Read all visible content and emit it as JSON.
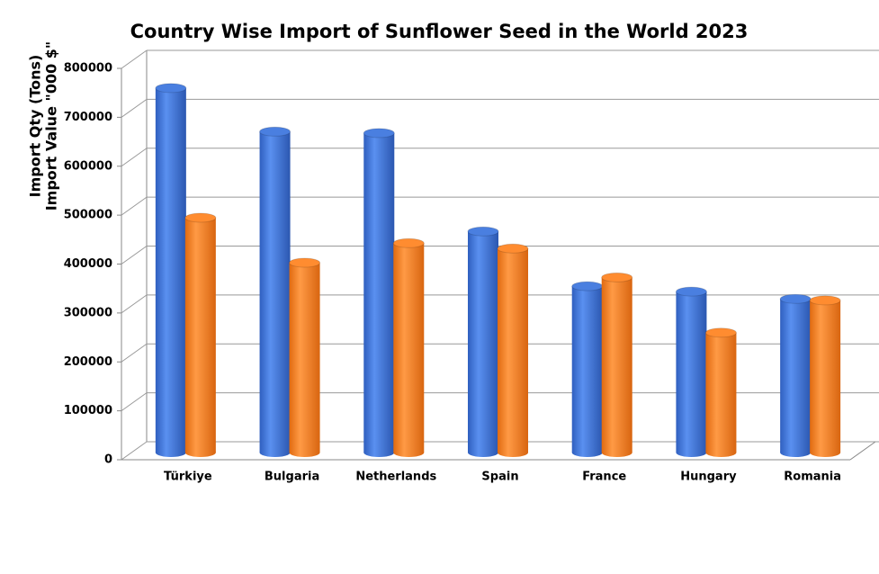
{
  "chart_data": {
    "type": "bar3d",
    "title": "Country Wise Import of Sunflower Seed in the World 2023",
    "y_label": [
      "Import Qty (Tons)",
      "Import Value \"000 $\""
    ],
    "categories": [
      "Türkiye",
      "Bulgaria",
      "Netherlands",
      "Spain",
      "France",
      "Hungary",
      "Romania"
    ],
    "series": [
      {
        "color": "#4a7fe0",
        "values": [
          745000,
          656000,
          653000,
          452000,
          340000,
          329000,
          314000
        ]
      },
      {
        "color": "#ff8c30",
        "values": [
          480000,
          388000,
          428000,
          417000,
          358000,
          245000,
          311000
        ]
      }
    ],
    "ylim": [
      0,
      800000
    ],
    "yticks": [
      0,
      100000,
      200000,
      300000,
      400000,
      500000,
      600000,
      700000,
      800000
    ],
    "grid": true
  }
}
